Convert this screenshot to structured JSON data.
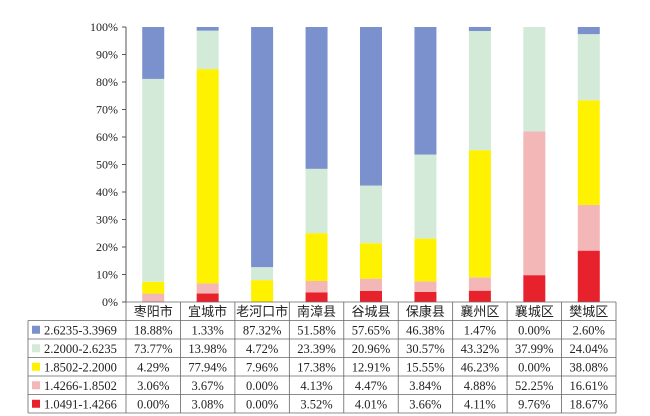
{
  "chart_data": {
    "type": "bar",
    "stacked": true,
    "percent": true,
    "categories": [
      "枣阳市",
      "宜城市",
      "老河口市",
      "南漳县",
      "谷城县",
      "保康县",
      "襄州区",
      "襄城区",
      "樊城区"
    ],
    "y_ticks": [
      "0%",
      "10%",
      "20%",
      "30%",
      "40%",
      "50%",
      "60%",
      "70%",
      "80%",
      "90%",
      "100%"
    ],
    "ylim": [
      0,
      100
    ],
    "grid": false,
    "legend_position": "table-bottom",
    "series": [
      {
        "name": "1.0491-1.4266",
        "color": "#e8222d",
        "values": [
          0.0,
          3.08,
          0.0,
          3.52,
          4.01,
          3.66,
          4.11,
          9.76,
          18.67
        ],
        "labels": [
          "0.00%",
          "3.08%",
          "0.00%",
          "3.52%",
          "4.01%",
          "3.66%",
          "4.11%",
          "9.76%",
          "18.67%"
        ]
      },
      {
        "name": "1.4266-1.8502",
        "color": "#f4b7b8",
        "values": [
          3.06,
          3.67,
          0.0,
          4.13,
          4.47,
          3.84,
          4.88,
          52.25,
          16.61
        ],
        "labels": [
          "3.06%",
          "3.67%",
          "0.00%",
          "4.13%",
          "4.47%",
          "3.84%",
          "4.88%",
          "52.25%",
          "16.61%"
        ]
      },
      {
        "name": "1.8502-2.2000",
        "color": "#fff200",
        "values": [
          4.29,
          77.94,
          7.96,
          17.38,
          12.91,
          15.55,
          46.23,
          0.0,
          38.08
        ],
        "labels": [
          "4.29%",
          "77.94%",
          "7.96%",
          "17.38%",
          "12.91%",
          "15.55%",
          "46.23%",
          "0.00%",
          "38.08%"
        ]
      },
      {
        "name": "2.2000-2.6235",
        "color": "#d3ead8",
        "values": [
          73.77,
          13.98,
          4.72,
          23.39,
          20.96,
          30.57,
          43.32,
          37.99,
          24.04
        ],
        "labels": [
          "73.77%",
          "13.98%",
          "4.72%",
          "23.39%",
          "20.96%",
          "30.57%",
          "43.32%",
          "37.99%",
          "24.04%"
        ]
      },
      {
        "name": "2.6235-3.3969",
        "color": "#7b91cd",
        "values": [
          18.88,
          1.33,
          87.32,
          51.58,
          57.65,
          46.38,
          1.47,
          0.0,
          2.6
        ],
        "labels": [
          "18.88%",
          "1.33%",
          "87.32%",
          "51.58%",
          "57.65%",
          "46.38%",
          "1.47%",
          "0.00%",
          "2.60%"
        ]
      }
    ]
  }
}
